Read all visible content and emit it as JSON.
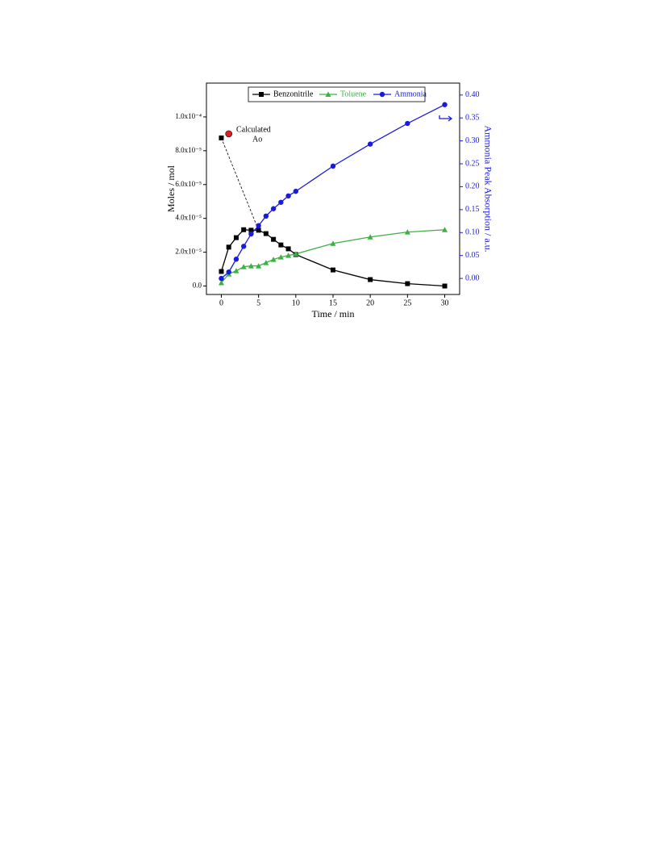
{
  "chart_data": {
    "type": "scatter",
    "x_label": "Time / min",
    "y_label": "Moles / mol",
    "y2_label": "Ammonia Peak Absorption / a.u.",
    "x": [
      0,
      1,
      2,
      3,
      4,
      5,
      6,
      7,
      8,
      9,
      10,
      15,
      20,
      25,
      30
    ],
    "series": [
      {
        "name": "Benzonitrile",
        "color": "#000000",
        "marker": "square",
        "axis": "y",
        "values": [
          8.6e-06,
          2.3e-05,
          2.86e-05,
          3.33e-05,
          3.3e-05,
          3.3e-05,
          3.1e-05,
          2.76e-05,
          2.43e-05,
          2.2e-05,
          1.86e-05,
          9.5e-06,
          3.8e-06,
          1.4e-06,
          0
        ]
      },
      {
        "name": "Toluene",
        "color": "#3cb043",
        "marker": "triangle",
        "axis": "y",
        "values": [
          1.9e-06,
          7.1e-06,
          9e-06,
          1.14e-05,
          1.19e-05,
          1.19e-05,
          1.38e-05,
          1.57e-05,
          1.71e-05,
          1.81e-05,
          1.9e-05,
          2.52e-05,
          2.9e-05,
          3.19e-05,
          3.33e-05
        ]
      },
      {
        "name": "Ammonia",
        "color": "#1a1adc",
        "marker": "circle",
        "axis": "y2",
        "values": [
          0.0,
          0.014,
          0.042,
          0.07,
          0.097,
          0.115,
          0.136,
          0.152,
          0.166,
          0.18,
          0.19,
          0.245,
          0.293,
          0.338,
          0.379
        ]
      }
    ],
    "annotation": {
      "lines": [
        "Calculated",
        "Ao"
      ],
      "point": {
        "x": 1,
        "y": 9e-05,
        "color": "#e02020"
      },
      "extrapolated": {
        "x": 0,
        "y": 8.76e-05
      }
    },
    "xlim": [
      -2,
      32
    ],
    "xticks": [
      0,
      5,
      10,
      15,
      20,
      25,
      30
    ],
    "ylim": [
      -5e-06,
      0.00012
    ],
    "yticks": [
      {
        "value": 0,
        "label": "0.0"
      },
      {
        "value": 2e-05,
        "label": "2.0x10⁻⁵"
      },
      {
        "value": 4e-05,
        "label": "4.0x10⁻⁵"
      },
      {
        "value": 6e-05,
        "label": "6.0x10⁻⁵"
      },
      {
        "value": 8e-05,
        "label": "8.0x10⁻⁵"
      },
      {
        "value": 0.0001,
        "label": "1.0x10⁻⁴"
      }
    ],
    "y2lim": [
      -0.035,
      0.426
    ],
    "y2ticks": [
      {
        "value": 0,
        "label": "0.00"
      },
      {
        "value": 0.05,
        "label": "0.05"
      },
      {
        "value": 0.1,
        "label": "0.10"
      },
      {
        "value": 0.15,
        "label": "0.15"
      },
      {
        "value": 0.2,
        "label": "0.20"
      },
      {
        "value": 0.25,
        "label": "0.25"
      },
      {
        "value": 0.3,
        "label": "0.30"
      },
      {
        "value": 0.35,
        "label": "0.35"
      },
      {
        "value": 0.4,
        "label": "0.40"
      }
    ],
    "y2_color": "#1a1adc",
    "grid": false
  }
}
